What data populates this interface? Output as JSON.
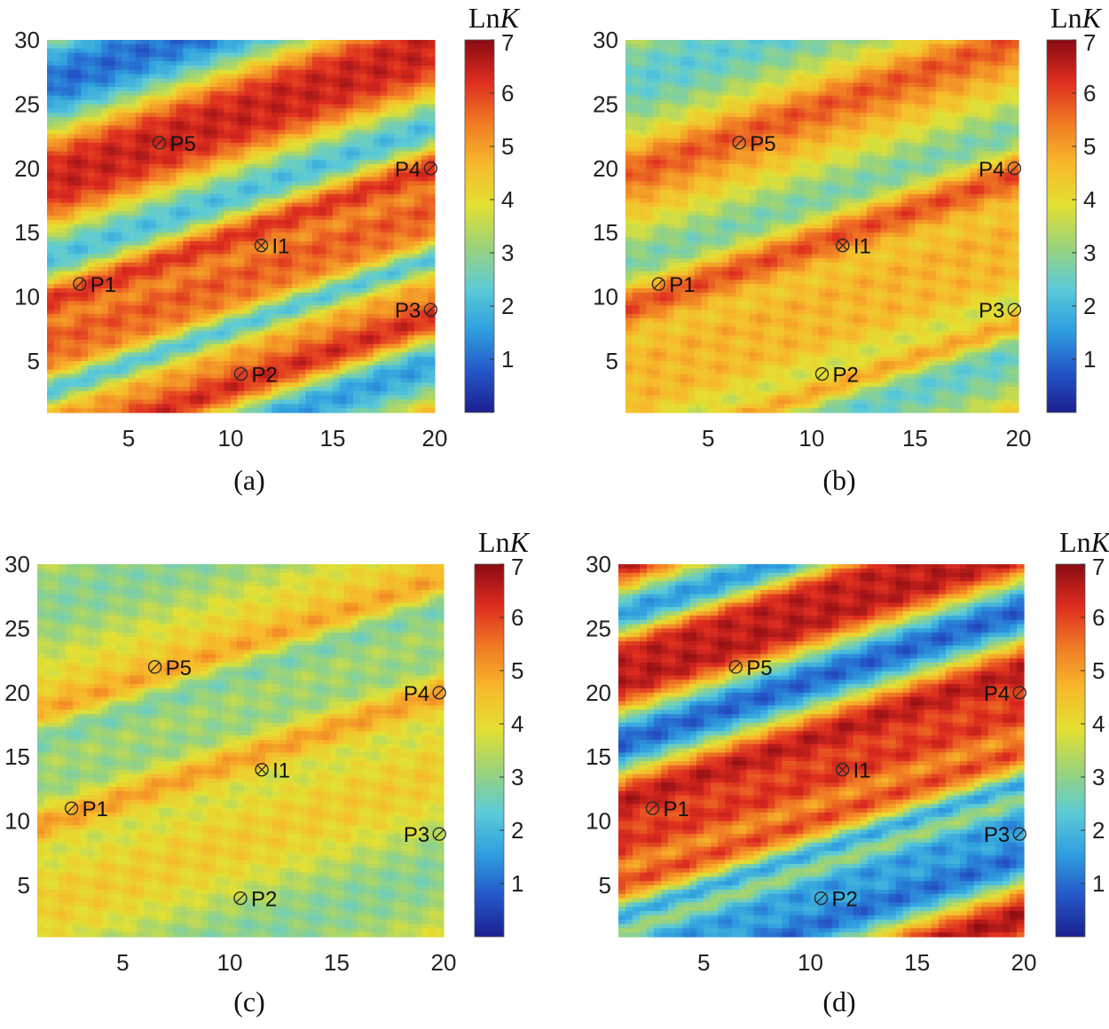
{
  "colormap": [
    "#1b1f8f",
    "#2457c8",
    "#2f9fe0",
    "#5ccbd7",
    "#9ad37a",
    "#e3e033",
    "#f7b92b",
    "#f07a24",
    "#dd2c1f",
    "#8a0b14"
  ],
  "chart_data": [
    {
      "type": "heatmap",
      "caption": "(a)",
      "colorbar_label_prefix": "Ln",
      "colorbar_label_var": "K",
      "colorbar_range": [
        0,
        7
      ],
      "colorbar_ticks": [
        "1",
        "2",
        "3",
        "4",
        "5",
        "6",
        "7"
      ],
      "xlim": [
        1,
        20
      ],
      "ylim": [
        1,
        30
      ],
      "xticks": [
        "5",
        "10",
        "15",
        "20"
      ],
      "yticks": [
        "5",
        "10",
        "15",
        "20",
        "25",
        "30"
      ],
      "field": {
        "base": 3.6,
        "slope": 0.55,
        "wavelength": 15.5,
        "phase": 0.45,
        "amplitude": 2.6,
        "bands": [
          {
            "center": 24.0,
            "width": 2.4,
            "value": 6.4
          },
          {
            "center": 14.5,
            "width": 2.2,
            "value": 6.2
          },
          {
            "center": 11.5,
            "width": 1.5,
            "value": 5.8
          },
          {
            "center": 7.5,
            "width": 1.5,
            "value": 2.2
          },
          {
            "center": 3.0,
            "width": 2.2,
            "value": 6.3
          }
        ]
      },
      "wells": [
        {
          "name": "P1",
          "x": 2.6,
          "y": 11,
          "marker": "producer"
        },
        {
          "name": "P2",
          "x": 10.5,
          "y": 4,
          "marker": "producer"
        },
        {
          "name": "P3",
          "x": 19.8,
          "y": 9,
          "marker": "producer"
        },
        {
          "name": "P4",
          "x": 19.8,
          "y": 20,
          "marker": "producer"
        },
        {
          "name": "P5",
          "x": 6.5,
          "y": 22,
          "marker": "producer"
        },
        {
          "name": "I1",
          "x": 11.5,
          "y": 14,
          "marker": "injector"
        }
      ]
    },
    {
      "type": "heatmap",
      "caption": "(b)",
      "colorbar_label_prefix": "Ln",
      "colorbar_label_var": "K",
      "colorbar_range": [
        0,
        7
      ],
      "colorbar_ticks": [
        "1",
        "2",
        "3",
        "4",
        "5",
        "6",
        "7"
      ],
      "xlim": [
        1,
        20
      ],
      "ylim": [
        1,
        30
      ],
      "xticks": [
        "5",
        "10",
        "15",
        "20"
      ],
      "yticks": [
        "5",
        "10",
        "15",
        "20",
        "25",
        "30"
      ],
      "field": {
        "base": 3.7,
        "slope": 0.55,
        "wavelength": 15.5,
        "phase": 0.45,
        "amplitude": 1.3,
        "bands": [
          {
            "center": 24.5,
            "width": 1.4,
            "value": 5.8
          },
          {
            "center": 14.0,
            "width": 2.0,
            "value": 5.9
          },
          {
            "center": 8.0,
            "width": 1.5,
            "value": 4.6
          },
          {
            "center": 2.5,
            "width": 1.2,
            "value": 4.9
          }
        ]
      },
      "wells": [
        {
          "name": "P1",
          "x": 2.6,
          "y": 11,
          "marker": "producer"
        },
        {
          "name": "P2",
          "x": 10.5,
          "y": 4,
          "marker": "producer"
        },
        {
          "name": "P3",
          "x": 19.8,
          "y": 9,
          "marker": "producer"
        },
        {
          "name": "P4",
          "x": 19.8,
          "y": 20,
          "marker": "producer"
        },
        {
          "name": "P5",
          "x": 6.5,
          "y": 22,
          "marker": "producer"
        },
        {
          "name": "I1",
          "x": 11.5,
          "y": 14,
          "marker": "injector"
        }
      ]
    },
    {
      "type": "heatmap",
      "caption": "(c)",
      "colorbar_label_prefix": "Ln",
      "colorbar_label_var": "K",
      "colorbar_range": [
        0,
        7
      ],
      "colorbar_ticks": [
        "1",
        "2",
        "3",
        "4",
        "5",
        "6",
        "7"
      ],
      "xlim": [
        1,
        20
      ],
      "ylim": [
        1,
        30
      ],
      "xticks": [
        "5",
        "10",
        "15",
        "20"
      ],
      "yticks": [
        "5",
        "10",
        "15",
        "20",
        "25",
        "30"
      ],
      "field": {
        "base": 3.6,
        "slope": 0.55,
        "wavelength": 15.5,
        "phase": 0.45,
        "amplitude": 0.7,
        "bands": [
          {
            "center": 23.0,
            "width": 1.2,
            "value": 5.2
          },
          {
            "center": 14.5,
            "width": 1.6,
            "value": 5.0
          },
          {
            "center": 21.0,
            "width": 1.5,
            "value": 2.8
          }
        ]
      },
      "wells": [
        {
          "name": "P1",
          "x": 2.6,
          "y": 11,
          "marker": "producer"
        },
        {
          "name": "P2",
          "x": 10.5,
          "y": 4,
          "marker": "producer"
        },
        {
          "name": "P3",
          "x": 19.8,
          "y": 9,
          "marker": "producer"
        },
        {
          "name": "P4",
          "x": 19.8,
          "y": 20,
          "marker": "producer"
        },
        {
          "name": "P5",
          "x": 6.5,
          "y": 22,
          "marker": "producer"
        },
        {
          "name": "I1",
          "x": 11.5,
          "y": 14,
          "marker": "injector"
        }
      ]
    },
    {
      "type": "heatmap",
      "caption": "(d)",
      "colorbar_label_prefix": "Ln",
      "colorbar_label_var": "K",
      "colorbar_range": [
        0,
        7
      ],
      "colorbar_ticks": [
        "1",
        "2",
        "3",
        "4",
        "5",
        "6",
        "7"
      ],
      "xlim": [
        1,
        20
      ],
      "ylim": [
        1,
        30
      ],
      "xticks": [
        "5",
        "10",
        "15",
        "20"
      ],
      "yticks": [
        "5",
        "10",
        "15",
        "20",
        "25",
        "30"
      ],
      "field": {
        "base": 3.8,
        "slope": 0.55,
        "wavelength": 9.5,
        "phase": 0.8,
        "amplitude": 2.9,
        "bands": [
          {
            "center": 27.5,
            "width": 2.2,
            "value": 6.5
          },
          {
            "center": 13.0,
            "width": 2.8,
            "value": 6.2
          },
          {
            "center": 4.5,
            "width": 2.0,
            "value": 1.5
          },
          {
            "center": 7.5,
            "width": 1.3,
            "value": 1.6
          },
          {
            "center": 10.0,
            "width": 1.3,
            "value": 6.0
          }
        ]
      },
      "wells": [
        {
          "name": "P1",
          "x": 2.6,
          "y": 11,
          "marker": "producer"
        },
        {
          "name": "P2",
          "x": 10.5,
          "y": 4,
          "marker": "producer"
        },
        {
          "name": "P3",
          "x": 19.8,
          "y": 9,
          "marker": "producer"
        },
        {
          "name": "P4",
          "x": 19.8,
          "y": 20,
          "marker": "producer"
        },
        {
          "name": "P5",
          "x": 6.5,
          "y": 22,
          "marker": "producer"
        },
        {
          "name": "I1",
          "x": 11.5,
          "y": 14,
          "marker": "injector"
        }
      ]
    }
  ]
}
